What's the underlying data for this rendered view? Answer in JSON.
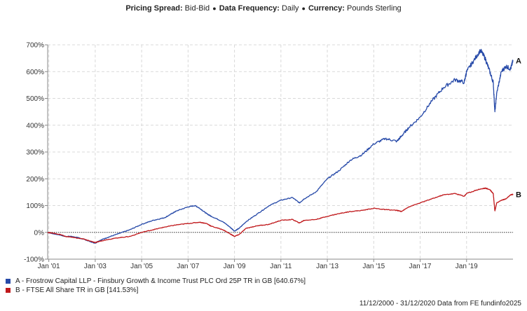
{
  "header": {
    "spread_label": "Pricing Spread:",
    "spread_value": "Bid-Bid",
    "frequency_label": "Data Frequency:",
    "frequency_value": "Daily",
    "currency_label": "Currency:",
    "currency_value": "Pounds Sterling"
  },
  "chart_data": {
    "type": "line",
    "title": "Pricing Spread: Bid-Bid • Data Frequency: Daily • Currency: Pounds Sterling",
    "xlabel": "",
    "ylabel": "",
    "xlim": [
      2000.95,
      2021.0
    ],
    "ylim": [
      -100,
      700
    ],
    "y_ticks": [
      -100,
      0,
      100,
      200,
      300,
      400,
      500,
      600,
      700
    ],
    "y_tick_labels": [
      "-100%",
      "0%",
      "100%",
      "200%",
      "300%",
      "400%",
      "500%",
      "600%",
      "700%"
    ],
    "x_ticks": [
      2001,
      2003,
      2005,
      2007,
      2009,
      2011,
      2013,
      2015,
      2017,
      2019
    ],
    "x_tick_labels": [
      "Jan '01",
      "Jan '03",
      "Jan '05",
      "Jan '07",
      "Jan '09",
      "Jan '11",
      "Jan '13",
      "Jan '15",
      "Jan '17",
      "Jan '19"
    ],
    "grid": true,
    "zero_line": true,
    "series": [
      {
        "name": "A - Frostrow Capital LLP - Finsbury Growth & Income Trust PLC Ord 25P TR in GB [640.67%]",
        "short_label": "A",
        "color": "#2649a8",
        "x": [
          2000.95,
          2001.2,
          2001.5,
          2001.7,
          2002.0,
          2002.5,
          2002.8,
          2003.0,
          2003.2,
          2003.5,
          2004.0,
          2004.5,
          2005.0,
          2005.5,
          2006.0,
          2006.3,
          2006.5,
          2007.0,
          2007.3,
          2007.5,
          2007.8,
          2008.0,
          2008.5,
          2008.8,
          2009.0,
          2009.2,
          2009.5,
          2010.0,
          2010.5,
          2011.0,
          2011.5,
          2011.8,
          2012.0,
          2012.5,
          2013.0,
          2013.5,
          2014.0,
          2014.5,
          2015.0,
          2015.5,
          2016.0,
          2016.2,
          2016.5,
          2017.0,
          2017.5,
          2018.0,
          2018.5,
          2018.9,
          2019.0,
          2019.3,
          2019.6,
          2019.8,
          2020.0,
          2020.15,
          2020.22,
          2020.3,
          2020.5,
          2020.7,
          2020.9,
          2021.0
        ],
        "values": [
          0,
          -5,
          -10,
          -15,
          -15,
          -25,
          -35,
          -40,
          -30,
          -20,
          -5,
          10,
          30,
          45,
          55,
          70,
          80,
          95,
          100,
          90,
          70,
          60,
          40,
          20,
          5,
          15,
          40,
          70,
          100,
          120,
          130,
          110,
          125,
          150,
          200,
          230,
          270,
          290,
          330,
          350,
          340,
          360,
          390,
          430,
          490,
          540,
          570,
          560,
          600,
          640,
          680,
          650,
          600,
          560,
          450,
          520,
          600,
          620,
          610,
          641
        ]
      },
      {
        "name": "B - FTSE All Share TR in GB [141.53%]",
        "short_label": "B",
        "color": "#c0191c",
        "x": [
          2000.95,
          2001.2,
          2001.5,
          2001.7,
          2002.0,
          2002.5,
          2002.8,
          2003.0,
          2003.2,
          2003.5,
          2004.0,
          2004.5,
          2005.0,
          2005.5,
          2006.0,
          2006.5,
          2007.0,
          2007.5,
          2007.8,
          2008.0,
          2008.5,
          2008.8,
          2009.0,
          2009.2,
          2009.5,
          2010.0,
          2010.5,
          2011.0,
          2011.5,
          2011.8,
          2012.0,
          2012.5,
          2013.0,
          2013.5,
          2014.0,
          2014.5,
          2015.0,
          2015.5,
          2016.0,
          2016.2,
          2016.5,
          2017.0,
          2017.5,
          2018.0,
          2018.5,
          2018.9,
          2019.0,
          2019.5,
          2019.8,
          2020.0,
          2020.15,
          2020.22,
          2020.3,
          2020.5,
          2020.7,
          2020.9,
          2021.0
        ],
        "values": [
          0,
          -3,
          -8,
          -15,
          -18,
          -25,
          -33,
          -38,
          -33,
          -27,
          -20,
          -15,
          0,
          10,
          20,
          28,
          33,
          38,
          33,
          23,
          10,
          -5,
          -15,
          -8,
          15,
          25,
          30,
          45,
          48,
          35,
          45,
          48,
          60,
          70,
          78,
          82,
          90,
          85,
          82,
          78,
          95,
          110,
          125,
          140,
          145,
          135,
          145,
          160,
          165,
          160,
          145,
          80,
          110,
          120,
          125,
          140,
          142
        ]
      }
    ]
  },
  "legend": {
    "entries": [
      {
        "label": "A - Frostrow Capital LLP - Finsbury Growth & Income Trust PLC Ord 25P TR in GB [640.67%]",
        "color": "#2649a8"
      },
      {
        "label": "B - FTSE All Share TR in GB [141.53%]",
        "color": "#c0191c"
      }
    ]
  },
  "footer": {
    "text": "11/12/2000 - 31/12/2020 Data from FE fundinfo2025"
  }
}
